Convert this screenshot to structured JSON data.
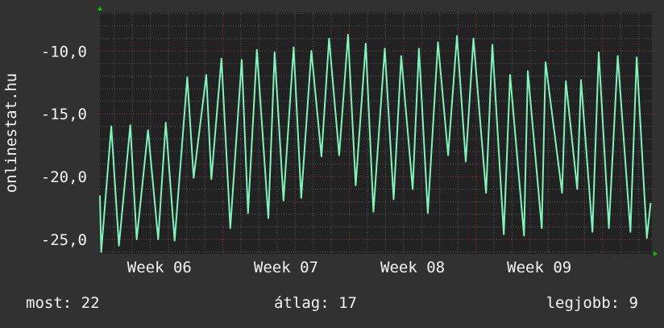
{
  "colors": {
    "background": "#313131",
    "plot_background": "#222222",
    "line": "#7ff5bd",
    "minor_grid": "#5a5a5a",
    "major_grid": "#8a3e3e",
    "arrow": "#00cc00",
    "text": "#f4f4f4"
  },
  "footer": {
    "current": "most: 22",
    "average": "átlag: 17",
    "best": "legjobb: 9"
  },
  "chart_data": {
    "type": "line",
    "title": "",
    "ylabel": "onlinestat.hu",
    "xlabel": "",
    "xlim": [
      6.03,
      10.39
    ],
    "ylim": [
      -26.15,
      -6.9
    ],
    "grid": true,
    "x_tick_labels": [
      {
        "label": "Week 06",
        "week": 6.5
      },
      {
        "label": "Week 07",
        "week": 7.5
      },
      {
        "label": "Week 08",
        "week": 8.5
      },
      {
        "label": "Week 09",
        "week": 9.5
      }
    ],
    "y_tick_labels": [
      {
        "label": "-10,0",
        "value": -10
      },
      {
        "label": "-15,0",
        "value": -15
      },
      {
        "label": "-20,0",
        "value": -20
      },
      {
        "label": "-25,0",
        "value": -25
      }
    ],
    "x": [
      6.03,
      6.04,
      6.12,
      6.18,
      6.27,
      6.32,
      6.41,
      6.49,
      6.55,
      6.62,
      6.72,
      6.77,
      6.87,
      6.91,
      6.99,
      7.06,
      7.15,
      7.2,
      7.27,
      7.36,
      7.41,
      7.48,
      7.56,
      7.62,
      7.7,
      7.78,
      7.84,
      7.92,
      7.99,
      8.05,
      8.13,
      8.19,
      8.28,
      8.35,
      8.41,
      8.5,
      8.55,
      8.62,
      8.7,
      8.78,
      8.85,
      8.92,
      8.98,
      9.08,
      9.13,
      9.22,
      9.27,
      9.38,
      9.41,
      9.52,
      9.55,
      9.68,
      9.71,
      9.8,
      9.83,
      9.92,
      9.97,
      10.05,
      10.12,
      10.22,
      10.27,
      10.35,
      10.38
    ],
    "y": [
      -21.5,
      -26.0,
      -16.0,
      -25.5,
      -15.9,
      -25.0,
      -16.3,
      -25.0,
      -15.7,
      -25.1,
      -12.1,
      -20.1,
      -11.9,
      -20.2,
      -10.6,
      -24.1,
      -10.7,
      -22.9,
      -9.9,
      -23.3,
      -10.1,
      -21.9,
      -9.7,
      -21.7,
      -10.0,
      -18.4,
      -9.0,
      -18.3,
      -8.7,
      -20.7,
      -9.4,
      -22.8,
      -9.8,
      -21.8,
      -10.4,
      -21.0,
      -9.8,
      -22.9,
      -9.3,
      -18.3,
      -8.8,
      -18.8,
      -9.0,
      -21.3,
      -9.5,
      -24.6,
      -11.9,
      -24.7,
      -11.6,
      -24.1,
      -10.9,
      -21.3,
      -12.4,
      -21.0,
      -12.3,
      -24.4,
      -10.1,
      -24.1,
      -10.4,
      -24.4,
      -10.5,
      -24.9,
      -22.1
    ]
  }
}
